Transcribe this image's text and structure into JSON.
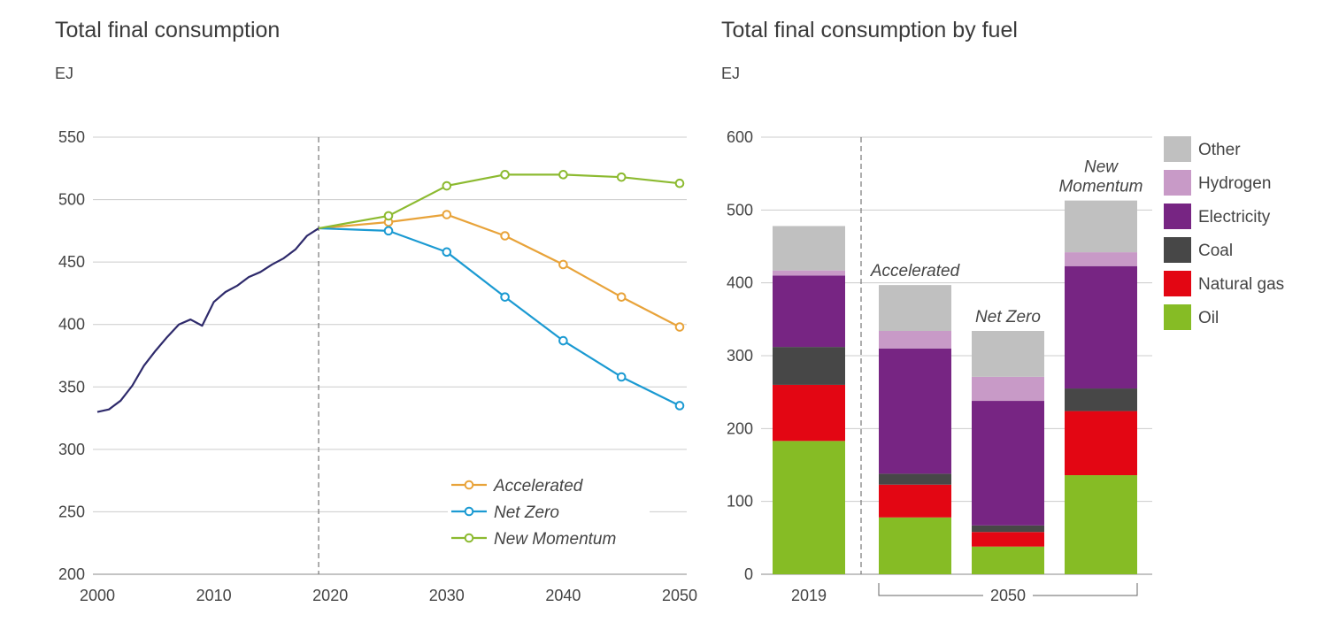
{
  "chart_data": [
    {
      "type": "line",
      "title": "Total final consumption",
      "ylabel": "EJ",
      "xlabel": "",
      "xlim": [
        2000,
        2050
      ],
      "ylim": [
        200,
        550
      ],
      "x_ticks": [
        2000,
        2010,
        2020,
        2030,
        2040,
        2050
      ],
      "y_ticks": [
        200,
        250,
        300,
        350,
        400,
        450,
        500,
        550
      ],
      "grid": "horizontal",
      "reference_line_x": 2019,
      "legend_position": "bottom-right",
      "colors": {
        "history": "#2e2a6b",
        "Accelerated": "#e8a33a",
        "Net Zero": "#1b9ad2",
        "New Momentum": "#8cba30"
      },
      "history": {
        "x": [
          2000,
          2001,
          2002,
          2003,
          2004,
          2005,
          2006,
          2007,
          2008,
          2009,
          2010,
          2011,
          2012,
          2013,
          2014,
          2015,
          2016,
          2017,
          2018,
          2019
        ],
        "y": [
          330,
          332,
          339,
          351,
          367,
          379,
          390,
          400,
          404,
          399,
          418,
          426,
          431,
          438,
          442,
          448,
          453,
          460,
          471,
          477
        ]
      },
      "series": [
        {
          "name": "Accelerated",
          "x": [
            2019,
            2025,
            2030,
            2035,
            2040,
            2045,
            2050
          ],
          "y": [
            477,
            482,
            488,
            471,
            448,
            422,
            398
          ]
        },
        {
          "name": "Net Zero",
          "x": [
            2019,
            2025,
            2030,
            2035,
            2040,
            2045,
            2050
          ],
          "y": [
            477,
            475,
            458,
            422,
            387,
            358,
            335
          ]
        },
        {
          "name": "New Momentum",
          "x": [
            2019,
            2025,
            2030,
            2035,
            2040,
            2045,
            2050
          ],
          "y": [
            477,
            487,
            511,
            520,
            520,
            518,
            513
          ]
        }
      ]
    },
    {
      "type": "bar",
      "stacked": true,
      "title": "Total final consumption by fuel",
      "ylabel": "EJ",
      "ylim": [
        0,
        600
      ],
      "y_ticks": [
        0,
        100,
        200,
        300,
        400,
        500,
        600
      ],
      "grid": "horizontal",
      "legend_position": "right",
      "categories": [
        "2019",
        "Accelerated",
        "Net Zero",
        "New Momentum"
      ],
      "bar_labels": [
        "",
        "Accelerated",
        "Net Zero",
        "New\nMomentum"
      ],
      "group_labels": [
        {
          "label": "2019",
          "bars": [
            0
          ]
        },
        {
          "label": "2050",
          "bars": [
            1,
            2,
            3
          ]
        }
      ],
      "series": [
        {
          "name": "Oil",
          "color": "#86bc25",
          "values": [
            183,
            78,
            38,
            136
          ]
        },
        {
          "name": "Natural gas",
          "color": "#e30613",
          "values": [
            77,
            45,
            20,
            88
          ]
        },
        {
          "name": "Coal",
          "color": "#474747",
          "values": [
            52,
            15,
            9,
            31
          ]
        },
        {
          "name": "Electricity",
          "color": "#772583",
          "values": [
            98,
            172,
            171,
            168
          ]
        },
        {
          "name": "Hydrogen",
          "color": "#c89ac7",
          "values": [
            7,
            24,
            33,
            19
          ]
        },
        {
          "name": "Other",
          "color": "#c0c0c0",
          "values": [
            61,
            63,
            63,
            71
          ]
        }
      ],
      "legend_order": [
        "Other",
        "Hydrogen",
        "Electricity",
        "Coal",
        "Natural gas",
        "Oil"
      ]
    }
  ]
}
